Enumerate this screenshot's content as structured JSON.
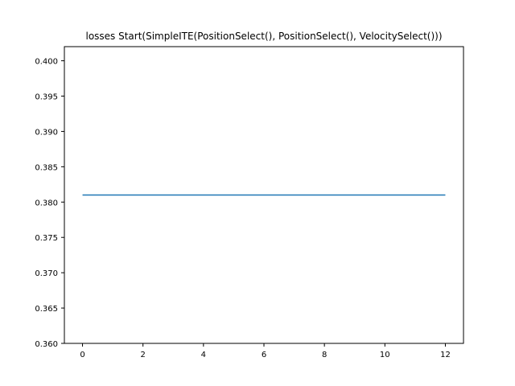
{
  "chart_data": {
    "type": "line",
    "title": "losses Start(SimpleITE(PositionSelect(), PositionSelect(), VelocitySelect()))",
    "xlabel": "",
    "ylabel": "",
    "xlim": [
      -0.6,
      12.6
    ],
    "ylim": [
      0.36,
      0.402
    ],
    "x_ticks": [
      0,
      2,
      4,
      6,
      8,
      10,
      12
    ],
    "y_ticks": [
      0.36,
      0.365,
      0.37,
      0.375,
      0.38,
      0.385,
      0.39,
      0.395,
      0.4
    ],
    "x_tick_labels": [
      "0",
      "2",
      "4",
      "6",
      "8",
      "10",
      "12"
    ],
    "y_tick_labels": [
      "0.360",
      "0.365",
      "0.370",
      "0.375",
      "0.380",
      "0.385",
      "0.390",
      "0.395",
      "0.400"
    ],
    "grid": false,
    "legend": "none",
    "series": [
      {
        "color": "#1f77b4",
        "x": [
          0,
          1,
          2,
          3,
          4,
          5,
          6,
          7,
          8,
          9,
          10,
          11,
          12
        ],
        "values": [
          0.381,
          0.381,
          0.381,
          0.381,
          0.381,
          0.381,
          0.381,
          0.381,
          0.381,
          0.381,
          0.381,
          0.381,
          0.381
        ]
      }
    ]
  }
}
